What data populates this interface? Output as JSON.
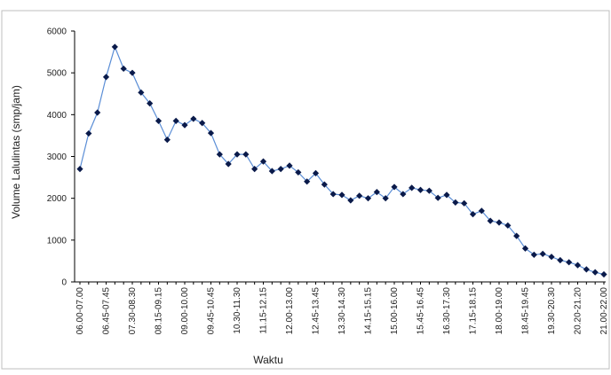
{
  "chart_data": {
    "type": "line",
    "title": "",
    "xlabel": "Waktu",
    "ylabel": "Volume Lalulintas (smp/jam)",
    "ylim": [
      0,
      6000
    ],
    "yticks": [
      0,
      1000,
      2000,
      3000,
      4000,
      5000,
      6000
    ],
    "grid": false,
    "legend": "none",
    "x_tick_labels": [
      "06.00-07.00",
      "06.45-07.45",
      "07.30-08.30",
      "08.15-09.15",
      "09.00-10.00",
      "09.45-10.45",
      "10.30-11.30",
      "11.15-12.15",
      "12.00-13.00",
      "12.45-13.45",
      "13.30-14.30",
      "14.15-15.15",
      "15.00-16.00",
      "15.45-16.45",
      "16.30-17.30",
      "17.15-18.15",
      "18.00-19.00",
      "18.45-19.45",
      "19.30-20.30",
      "20.20-21.20",
      "21.00-22.00"
    ],
    "series": [
      {
        "name": "",
        "color": "#0a1a4a",
        "line_color": "#5b8ed6",
        "values": [
          2700,
          3550,
          4050,
          4900,
          5620,
          5100,
          5000,
          4530,
          4270,
          3850,
          3400,
          3850,
          3750,
          3900,
          3800,
          3560,
          3050,
          2820,
          3050,
          3050,
          2700,
          2880,
          2650,
          2700,
          2780,
          2620,
          2400,
          2600,
          2330,
          2100,
          2080,
          1950,
          2060,
          2000,
          2150,
          2000,
          2270,
          2100,
          2250,
          2200,
          2180,
          2010,
          2080,
          1900,
          1880,
          1620,
          1700,
          1460,
          1420,
          1350,
          1100,
          800,
          650,
          670,
          600,
          520,
          470,
          400,
          300,
          230,
          180
        ]
      }
    ]
  }
}
